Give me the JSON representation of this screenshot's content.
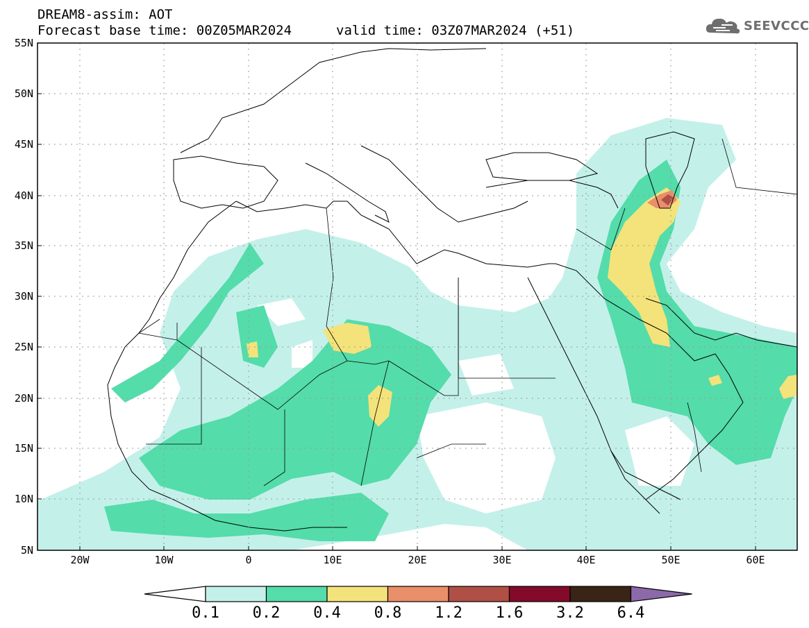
{
  "header": {
    "title": "DREAM8-assim: AOT",
    "base_time": "Forecast base time: 00Z05MAR2024",
    "valid_time": "valid time: 03Z07MAR2024 (+51)"
  },
  "logo": {
    "text": "SEEVCCC",
    "icon": "cloud-icon"
  },
  "map": {
    "projection": "lat-lon",
    "lon_range": [
      -25,
      65
    ],
    "lat_range": [
      5,
      55
    ],
    "lat_labels": [
      "55N",
      "50N",
      "45N",
      "40N",
      "35N",
      "30N",
      "25N",
      "20N",
      "15N",
      "10N",
      "5N"
    ],
    "lon_labels": [
      "20W",
      "10W",
      "0",
      "10E",
      "20E",
      "30E",
      "40E",
      "50E",
      "60E"
    ],
    "variable": "Aerosol optical thickness (dust)"
  },
  "colorbar": {
    "labels": [
      "0.1",
      "0.2",
      "0.4",
      "0.8",
      "1.2",
      "1.6",
      "3.2",
      "6.4"
    ],
    "colors": [
      "#c4f0ea",
      "#54dcaa",
      "#f4e37a",
      "#e98f69",
      "#b04f46",
      "#840a2a",
      "#3a2416",
      "#8c69a9"
    ],
    "under_color": "#ffffff",
    "over_color": "#8c69a9"
  },
  "colors": {
    "grid": "#9a9a9a",
    "border": "#000000"
  }
}
